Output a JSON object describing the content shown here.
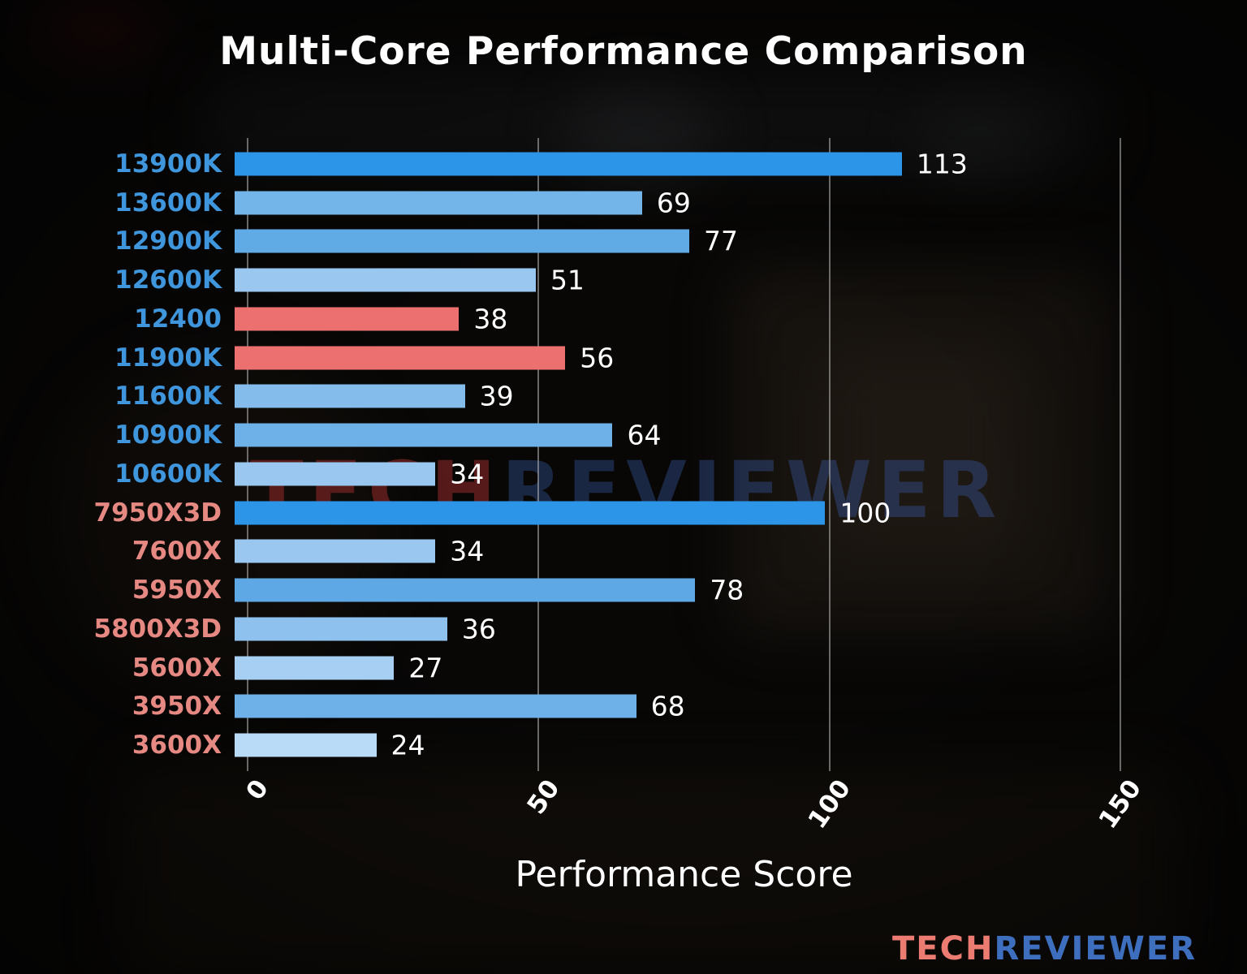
{
  "title": "Multi-Core Performance Comparison",
  "xlabel": "Performance Score",
  "watermark": {
    "tech": "TECH",
    "reviewer": "REVIEWER"
  },
  "logo": {
    "tech": "TECH",
    "reviewer": "REVIEWER"
  },
  "colors": {
    "intel_label": "#3f96dc",
    "amd_label": "#e78983",
    "highlight_bar": "#ed7070",
    "strong_blue_bar": "#2d95e8",
    "grid": "#b9b9b9",
    "text": "#ffffff"
  },
  "chart_data": {
    "type": "bar",
    "orientation": "horizontal",
    "title": "Multi-Core Performance Comparison",
    "xlabel": "Performance Score",
    "ylabel": "",
    "xlim": [
      0,
      150
    ],
    "xticks": [
      0,
      50,
      100,
      150
    ],
    "grid": true,
    "categories": [
      "13900K",
      "13600K",
      "12900K",
      "12600K",
      "12400",
      "11900K",
      "11600K",
      "10900K",
      "10600K",
      "7950X3D",
      "7600X",
      "5950X",
      "5800X3D",
      "5600X",
      "3950X",
      "3600X"
    ],
    "values": [
      113,
      69,
      77,
      51,
      38,
      56,
      39,
      64,
      34,
      100,
      34,
      78,
      36,
      27,
      68,
      24
    ],
    "bar_colors": [
      "#2d95e8",
      "#73b4e9",
      "#60abe6",
      "#9ac7f0",
      "#ed7070",
      "#ed7070",
      "#84bcec",
      "#6db1e8",
      "#9ac7f0",
      "#2d95e8",
      "#9ac7f0",
      "#5ea8e5",
      "#8ec1ee",
      "#a6cff3",
      "#6db1e8",
      "#b9dbf7"
    ],
    "label_colors": [
      "#3f96dc",
      "#3f96dc",
      "#3f96dc",
      "#3f96dc",
      "#3f96dc",
      "#3f96dc",
      "#3f96dc",
      "#3f96dc",
      "#3f96dc",
      "#e78983",
      "#e78983",
      "#e78983",
      "#e78983",
      "#e78983",
      "#e78983",
      "#e78983"
    ]
  }
}
